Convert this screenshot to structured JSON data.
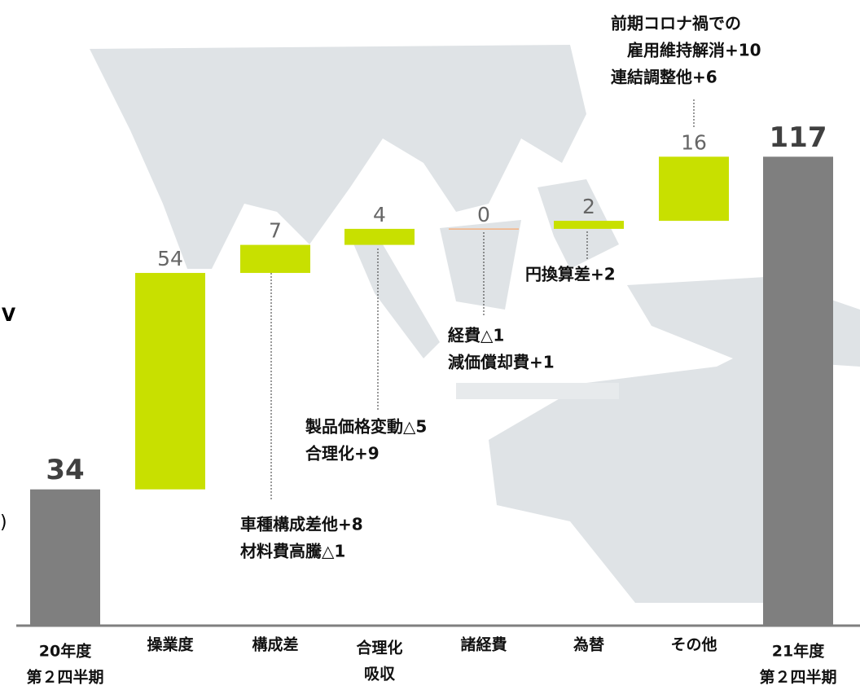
{
  "chart_data": {
    "type": "waterfall",
    "categories": [
      [
        "20年度",
        "第２四半期"
      ],
      [
        "操業度"
      ],
      [
        "構成差"
      ],
      [
        "合理化",
        "吸収"
      ],
      [
        "諸経費"
      ],
      [
        "為替"
      ],
      [
        "その他"
      ],
      [
        "21年度",
        "第２四半期"
      ]
    ],
    "values": [
      34,
      54,
      7,
      4,
      0,
      2,
      16,
      117
    ],
    "measure": [
      "total",
      "relative",
      "relative",
      "relative",
      "relative",
      "relative",
      "relative",
      "total"
    ],
    "total_color": "#7f7f7f",
    "increase_color": "#c8e000",
    "zero_color": "#f4b183",
    "annotations": [
      [
        "車種構成差他+8",
        "材料費高騰△1"
      ],
      [
        "製品価格変動△5",
        "合理化+9"
      ],
      [
        "経費△1",
        "減価償却費+1"
      ],
      [
        "円換算差+2"
      ],
      [
        "前期コロナ禍での",
        "雇用維持解消+10",
        "連結調整他+6"
      ]
    ],
    "edge_fragments": [
      "V",
      ")"
    ]
  }
}
